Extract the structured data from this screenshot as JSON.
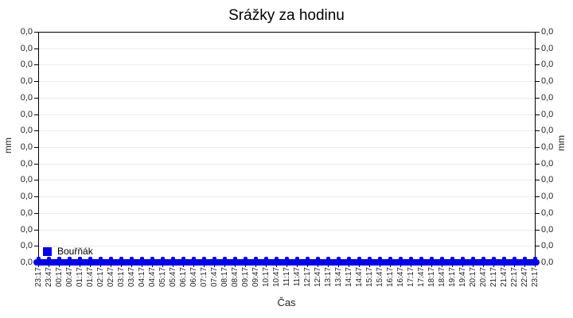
{
  "colors": {
    "series_blue": "#0000ee",
    "axis": "#000000",
    "grid": "#ececec",
    "text": "#222222",
    "background": "#ffffff"
  },
  "chart_data": {
    "type": "bar",
    "title": "Srážky za hodinu",
    "xlabel": "Čas",
    "ylabel_left": "mm",
    "ylabel_right": "mm",
    "grid": "horizontal",
    "legend_position": "bottom-left-inside",
    "ylim": [
      0,
      0
    ],
    "y_tick_labels": [
      "0,0",
      "0,0",
      "0,0",
      "0,0",
      "0,0",
      "0,0",
      "0,0",
      "0,0",
      "0,0",
      "0,0",
      "0,0",
      "0,0",
      "0,0",
      "0,0",
      "0,0"
    ],
    "categories": [
      "23:17",
      "23:47",
      "00:17",
      "00:47",
      "01:17",
      "01:47",
      "02:17",
      "02:47",
      "03:17",
      "03:47",
      "04:17",
      "04:47",
      "05:17",
      "05:47",
      "06:17",
      "06:47",
      "07:17",
      "07:47",
      "08:17",
      "08:47",
      "09:17",
      "09:47",
      "10:17",
      "10:47",
      "11:17",
      "11:47",
      "12:17",
      "12:47",
      "13:17",
      "13:47",
      "14:17",
      "14:47",
      "15:17",
      "15:47",
      "16:17",
      "16:47",
      "17:17",
      "17:47",
      "18:17",
      "18:47",
      "19:17",
      "19:47",
      "20:17",
      "20:47",
      "21:17",
      "21:47",
      "22:17",
      "22:47",
      "23:17"
    ],
    "series": [
      {
        "name": "Bouřňák",
        "color": "#0000ee",
        "values": [
          0,
          0,
          0,
          0,
          0,
          0,
          0,
          0,
          0,
          0,
          0,
          0,
          0,
          0,
          0,
          0,
          0,
          0,
          0,
          0,
          0,
          0,
          0,
          0,
          0,
          0,
          0,
          0,
          0,
          0,
          0,
          0,
          0,
          0,
          0,
          0,
          0,
          0,
          0,
          0,
          0,
          0,
          0,
          0,
          0,
          0,
          0,
          0,
          0
        ]
      }
    ]
  }
}
